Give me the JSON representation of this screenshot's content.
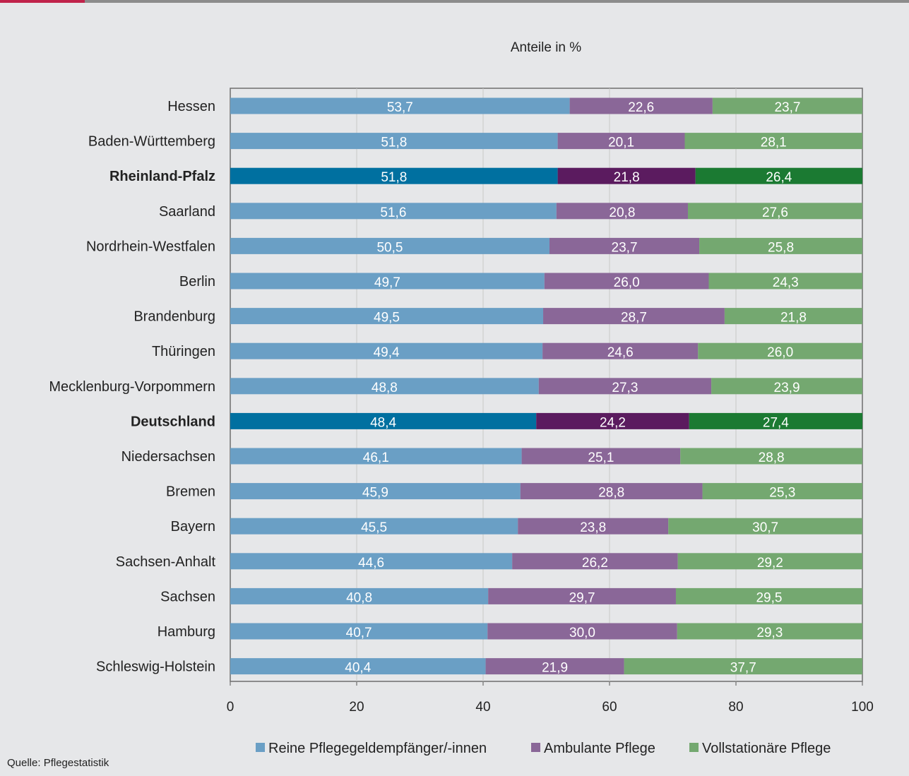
{
  "source": "Quelle: Pflegestatistik",
  "chart_data": {
    "type": "bar",
    "orientation": "horizontal",
    "stacked": true,
    "title": "Anteile in %",
    "xlim": [
      0,
      100
    ],
    "xticks": [
      "0",
      "20",
      "40",
      "60",
      "80",
      "100"
    ],
    "grid": true,
    "legend_position": "bottom",
    "categories": [
      "Hessen",
      "Baden-Württemberg",
      "Rheinland-Pfalz",
      "Saarland",
      "Nordrhein-Westfalen",
      "Berlin",
      "Brandenburg",
      "Thüringen",
      "Mecklenburg-Vorpommern",
      "Deutschland",
      "Niedersachsen",
      "Bremen",
      "Bayern",
      "Sachsen-Anhalt",
      "Sachsen",
      "Hamburg",
      "Schleswig-Holstein"
    ],
    "highlight": {
      "Rheinland-Pfalz": "#c0234b",
      "Deutschland": "#0077a8"
    },
    "series": [
      {
        "name": "Reine Pflegegeldempfänger/-innen",
        "color": "#6a9fc5",
        "highlight_color": "#0070a0",
        "values": [
          53.7,
          51.8,
          51.8,
          51.6,
          50.5,
          49.7,
          49.5,
          49.4,
          48.8,
          48.4,
          46.1,
          45.9,
          45.5,
          44.6,
          40.8,
          40.7,
          40.4
        ],
        "labels": [
          "53,7",
          "51,8",
          "51,8",
          "51,6",
          "50,5",
          "49,7",
          "49,5",
          "49,4",
          "48,8",
          "48,4",
          "46,1",
          "45,9",
          "45,5",
          "44,6",
          "40,8",
          "40,7",
          "40,4"
        ]
      },
      {
        "name": "Ambulante Pflege",
        "color": "#8a6798",
        "highlight_color": "#5b1b5f",
        "values": [
          22.6,
          20.1,
          21.8,
          20.8,
          23.7,
          26.0,
          28.7,
          24.6,
          27.3,
          24.2,
          25.1,
          28.8,
          23.8,
          26.2,
          29.7,
          30.0,
          21.9
        ],
        "labels": [
          "22,6",
          "20,1",
          "21,8",
          "20,8",
          "23,7",
          "26,0",
          "28,7",
          "24,6",
          "27,3",
          "24,2",
          "25,1",
          "28,8",
          "23,8",
          "26,2",
          "29,7",
          "30,0",
          "21,9"
        ]
      },
      {
        "name": "Vollstationäre Pflege",
        "color": "#74a870",
        "highlight_color": "#1b7a32",
        "values": [
          23.7,
          28.1,
          26.4,
          27.6,
          25.8,
          24.3,
          21.8,
          26.0,
          23.9,
          27.4,
          28.8,
          25.3,
          30.7,
          29.2,
          29.5,
          29.3,
          37.7
        ],
        "labels": [
          "23,7",
          "28,1",
          "26,4",
          "27,6",
          "25,8",
          "24,3",
          "21,8",
          "26,0",
          "23,9",
          "27,4",
          "28,8",
          "25,3",
          "30,7",
          "29,2",
          "29,5",
          "29,3",
          "37,7"
        ]
      }
    ]
  }
}
